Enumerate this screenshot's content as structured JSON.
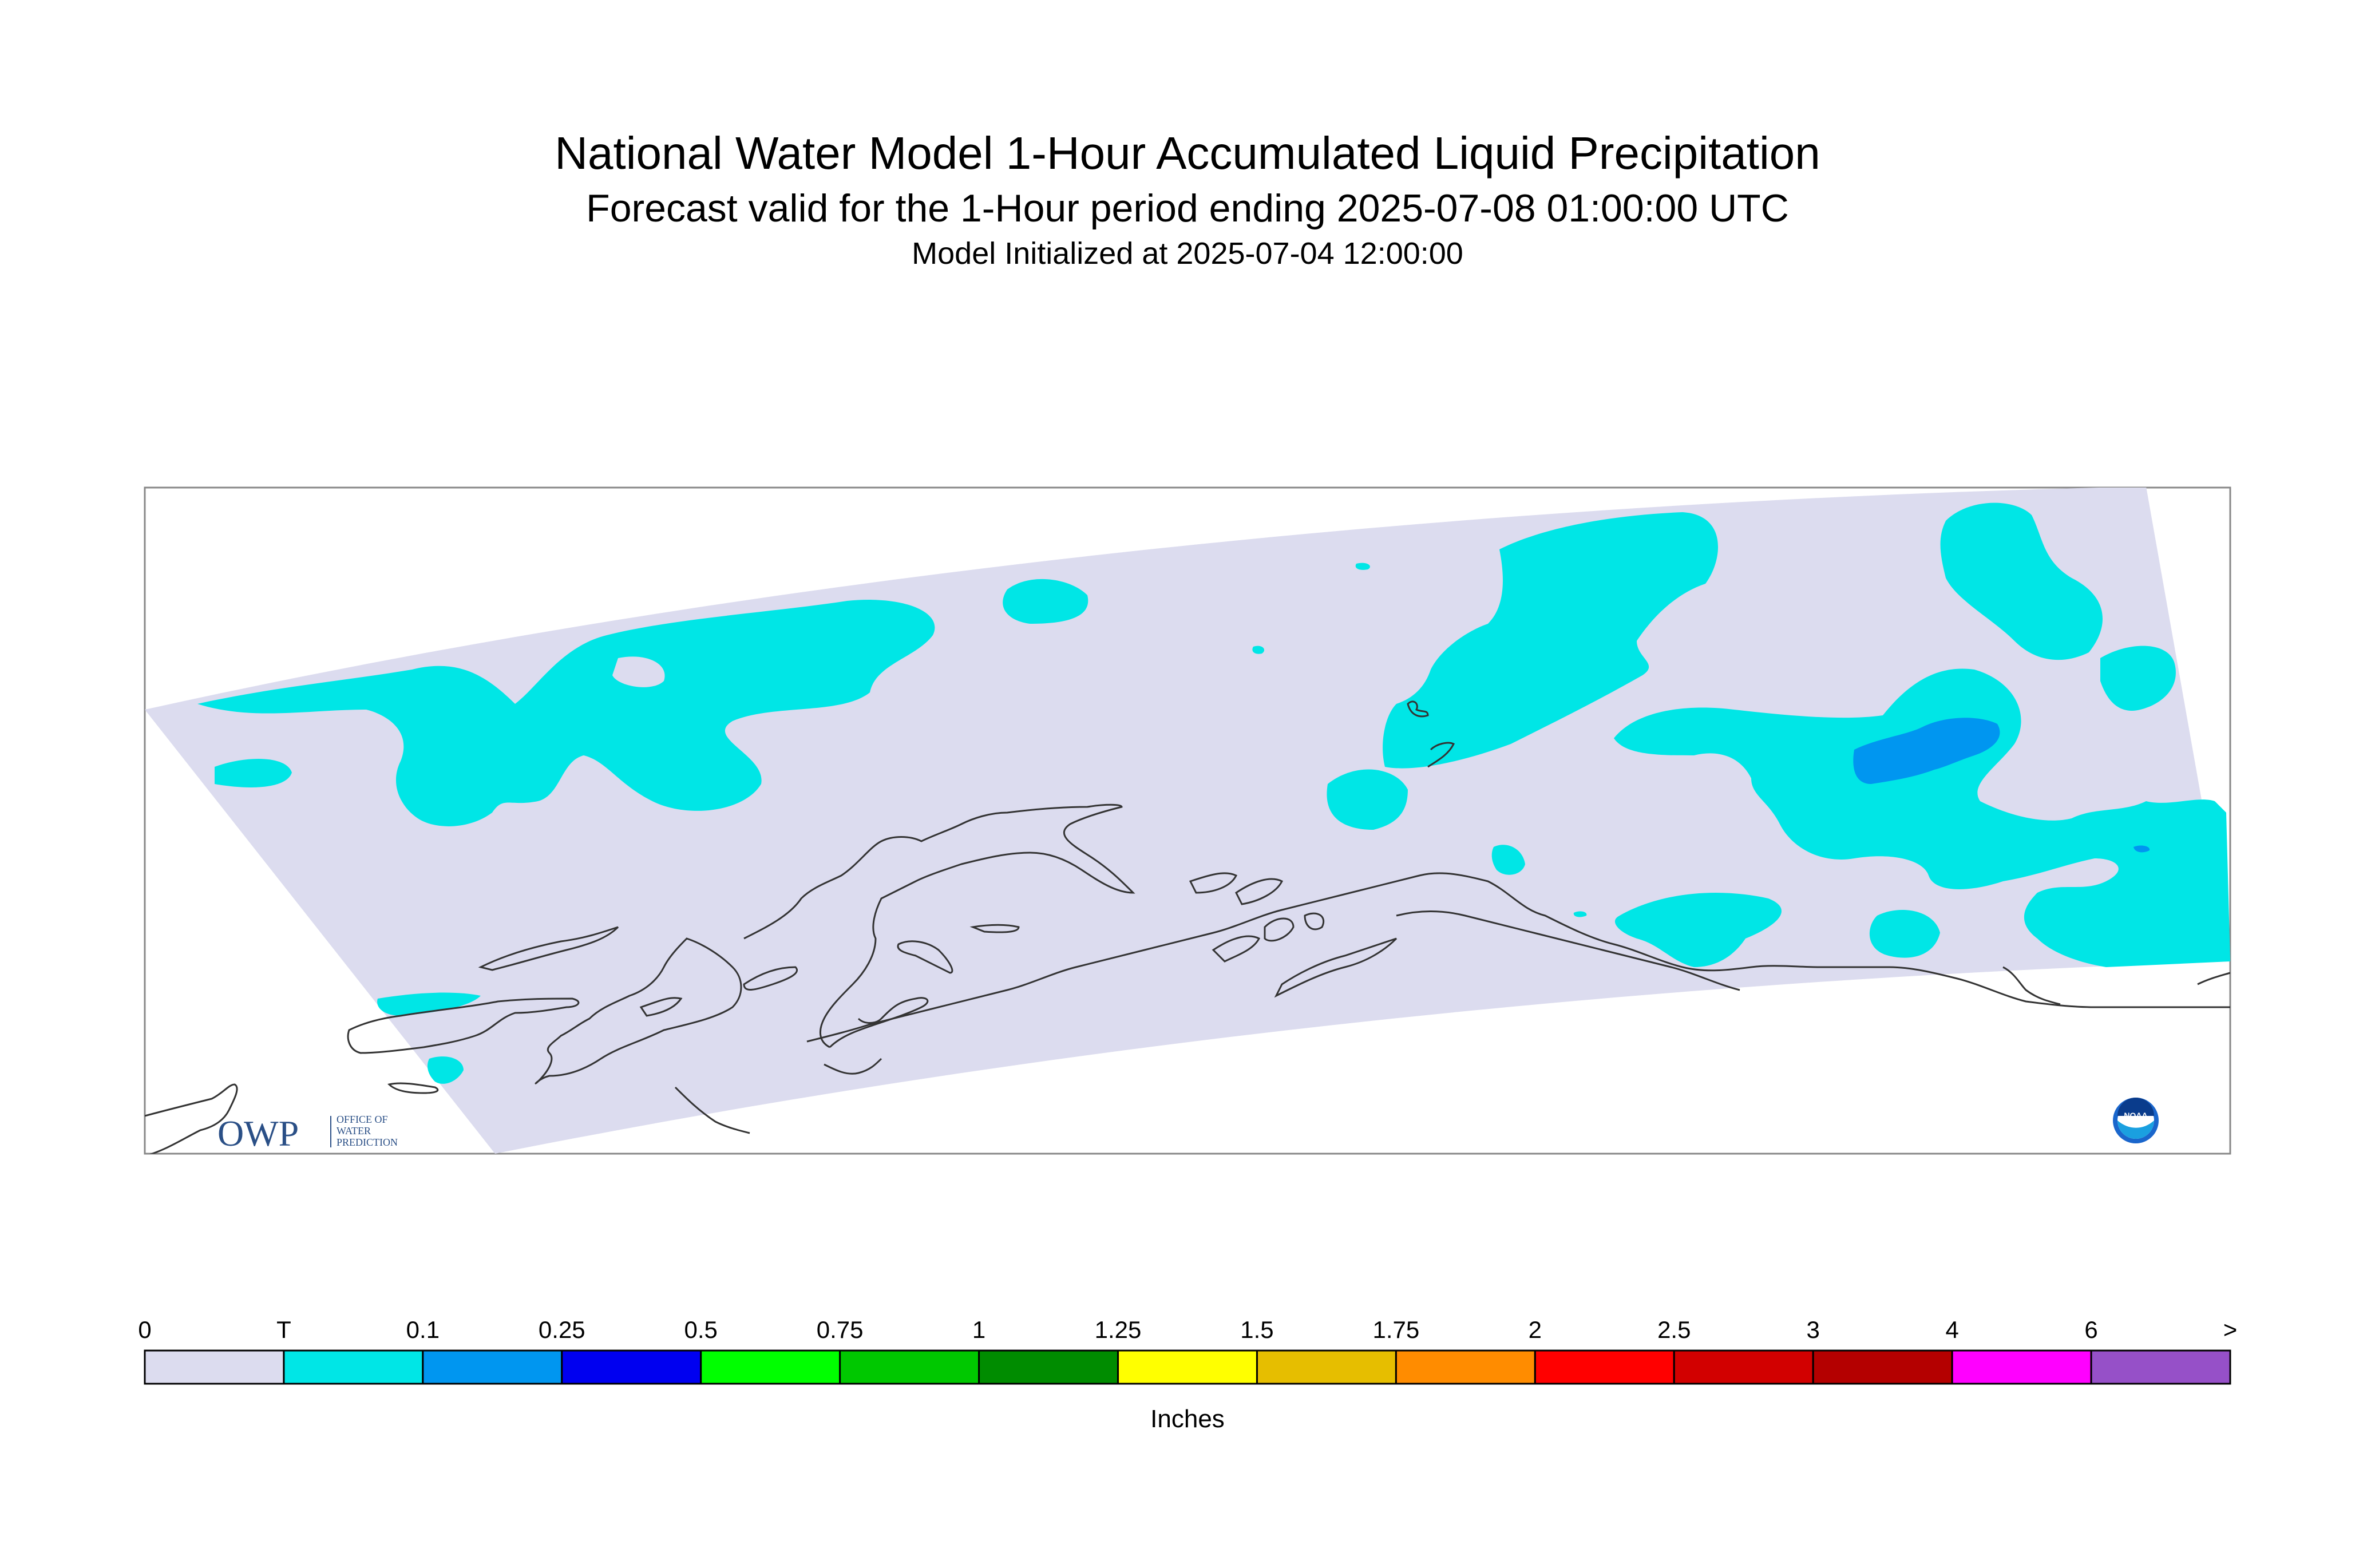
{
  "title": "National Water Model 1-Hour Accumulated Liquid Precipitation",
  "subtitle": "Forecast valid for the 1-Hour period ending 2025-07-08 01:00:00 UTC",
  "init_line": "Model Initialized at 2025-07-04 12:00:00",
  "legend": {
    "units": "Inches",
    "labels": [
      "0",
      "T",
      "0.1",
      "0.25",
      "0.5",
      "0.75",
      "1",
      "1.25",
      "1.5",
      "1.75",
      "2",
      "2.5",
      "3",
      "4",
      "6",
      ">"
    ],
    "colors": [
      "#dcdcef",
      "#00e6e6",
      "#0096f0",
      "#0000f0",
      "#00ff00",
      "#00c800",
      "#008c00",
      "#ffff00",
      "#e6be00",
      "#ff8c00",
      "#ff0000",
      "#d20000",
      "#b40000",
      "#ff00ff",
      "#9650c8"
    ]
  },
  "logos": {
    "owp_mark": "OWP",
    "owp_text": [
      "OFFICE OF",
      "WATER",
      "PREDICTION"
    ],
    "noaa": "NOAA"
  },
  "colors": {
    "no_precip": "#dcdcef",
    "trace": "#00e6e6",
    "light": "#0096f0",
    "coast": "#333333",
    "frame": "#888888"
  }
}
